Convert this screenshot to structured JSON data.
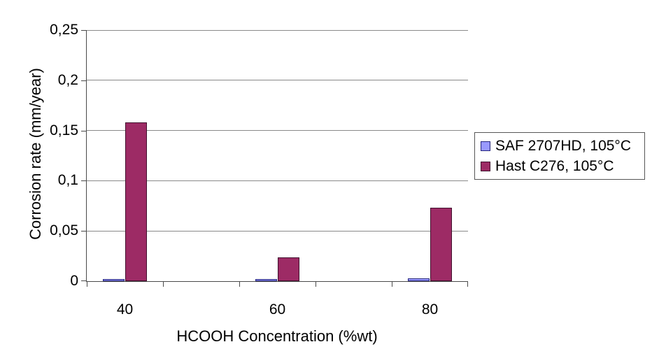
{
  "chart_data": {
    "type": "bar",
    "title": "",
    "xlabel": "HCOOH Concentration (%wt)",
    "ylabel": "Corrosion rate (mm/year)",
    "categories": [
      "40",
      "60",
      "80"
    ],
    "series": [
      {
        "name": "SAF 2707HD, 105°C",
        "color": "#9999FF",
        "border_color": "#26267d",
        "values": [
          0.002,
          0.002,
          0.003
        ]
      },
      {
        "name": "Hast C276, 105°C",
        "color": "#9D2B65",
        "border_color": "#42112e",
        "values": [
          0.158,
          0.024,
          0.073
        ]
      }
    ],
    "ylim": [
      0,
      0.25
    ],
    "ytick_step": 0.05,
    "ytick_labels": [
      "0",
      "0,05",
      "0,1",
      "0,15",
      "0,2",
      "0,25"
    ],
    "decimal_separator": "comma",
    "grid": true,
    "legend_position": "right",
    "layout_hint": "empty spacer category slot between each data group",
    "colors": {
      "gridline": "#8a8a8a",
      "axis": "#4a4a4a",
      "legend_border": "#565656",
      "background": "#ffffff",
      "text": "#000000"
    }
  }
}
